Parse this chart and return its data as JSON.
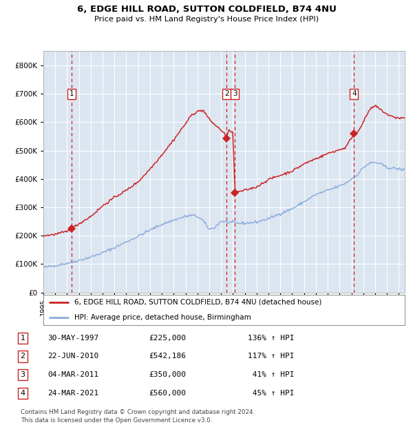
{
  "title1": "6, EDGE HILL ROAD, SUTTON COLDFIELD, B74 4NU",
  "title2": "Price paid vs. HM Land Registry's House Price Index (HPI)",
  "ylim": [
    0,
    850000
  ],
  "yticks": [
    0,
    100000,
    200000,
    300000,
    400000,
    500000,
    600000,
    700000,
    800000
  ],
  "ytick_labels": [
    "£0",
    "£100K",
    "£200K",
    "£300K",
    "£400K",
    "£500K",
    "£600K",
    "£700K",
    "£800K"
  ],
  "bg_color": "#dce6f1",
  "red_line_color": "#cc2222",
  "blue_line_color": "#88aadd",
  "dashed_line_color": "#cc2222",
  "marker_color": "#cc2222",
  "xlim_start": 1995.0,
  "xlim_end": 2025.5,
  "transactions": [
    {
      "label": "1",
      "date_x": 1997.37,
      "price": 225000
    },
    {
      "label": "2",
      "date_x": 2010.47,
      "price": 542186
    },
    {
      "label": "3",
      "date_x": 2011.17,
      "price": 350000
    },
    {
      "label": "4",
      "date_x": 2021.22,
      "price": 560000
    }
  ],
  "legend_red": "6, EDGE HILL ROAD, SUTTON COLDFIELD, B74 4NU (detached house)",
  "legend_blue": "HPI: Average price, detached house, Birmingham",
  "table_rows": [
    [
      "1",
      "30-MAY-1997",
      "£225,000",
      "136% ↑ HPI"
    ],
    [
      "2",
      "22-JUN-2010",
      "£542,186",
      "117% ↑ HPI"
    ],
    [
      "3",
      "04-MAR-2011",
      "£350,000",
      " 41% ↑ HPI"
    ],
    [
      "4",
      "24-MAR-2021",
      "£560,000",
      " 45% ↑ HPI"
    ]
  ],
  "footer": "Contains HM Land Registry data © Crown copyright and database right 2024.\nThis data is licensed under the Open Government Licence v3.0."
}
